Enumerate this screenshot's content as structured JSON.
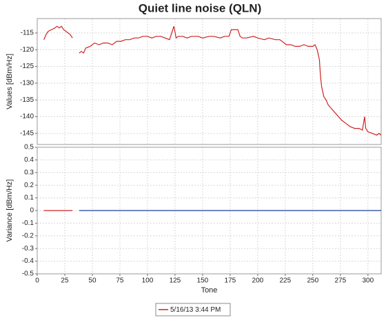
{
  "chart_data": [
    {
      "type": "line",
      "title": "Quiet line noise (QLN)",
      "ylabel": "Values [dBm/Hz]",
      "xlim": [
        0,
        312
      ],
      "xticks": [
        0,
        25,
        50,
        75,
        100,
        125,
        150,
        175,
        200,
        225,
        250,
        275,
        300
      ],
      "ylim": [
        -148.3,
        -110.7
      ],
      "yticks": [
        -115,
        -120,
        -125,
        -130,
        -135,
        -140,
        -145
      ],
      "grid": true,
      "series": [
        {
          "name": "5/16/13 3:44 PM",
          "color": "#d02020",
          "x": [
            6,
            8,
            10,
            13,
            16,
            18,
            20,
            22,
            24,
            26,
            28,
            30,
            32,
            35,
            38,
            40,
            42,
            44,
            48,
            52,
            56,
            60,
            64,
            68,
            72,
            76,
            80,
            84,
            88,
            92,
            96,
            100,
            104,
            108,
            112,
            116,
            120,
            124,
            126,
            128,
            132,
            136,
            140,
            146,
            150,
            156,
            160,
            166,
            170,
            174,
            176,
            178,
            182,
            184,
            186,
            190,
            196,
            200,
            206,
            210,
            216,
            220,
            224,
            226,
            230,
            234,
            238,
            242,
            246,
            250,
            252,
            254,
            256,
            257,
            258,
            260,
            262,
            264,
            268,
            272,
            276,
            280,
            284,
            288,
            292,
            295,
            297,
            298,
            300,
            304,
            308,
            310,
            312
          ],
          "values": [
            -117,
            -115.5,
            -114.5,
            -114,
            -113.5,
            -113,
            -113.5,
            -113,
            -114,
            -114.5,
            -115,
            -115.5,
            -116.5,
            null,
            -121,
            -120.5,
            -121,
            -119.5,
            -119,
            -118,
            -118.5,
            -118,
            -118,
            -118.5,
            -117.5,
            -117.5,
            -117,
            -117,
            -116.5,
            -116.5,
            -116,
            -116,
            -116.5,
            -116,
            -116,
            -116.5,
            -117,
            -113,
            -116.5,
            -116,
            -116,
            -116.5,
            -116,
            -116,
            -116.5,
            -116,
            -116,
            -116.5,
            -116,
            -116,
            -114,
            -114,
            -114,
            -116,
            -116.5,
            -116.5,
            -116,
            -116.5,
            -117,
            -116.5,
            -117,
            -117,
            -118,
            -118.5,
            -118.5,
            -119,
            -119,
            -118.5,
            -119,
            -119,
            -118.5,
            -120,
            -123,
            -128,
            -131,
            -134,
            -135,
            -136.5,
            -138,
            -139.5,
            -141,
            -142,
            -143,
            -143.5,
            -143.5,
            -144,
            -140,
            -143.5,
            -144.5,
            -145,
            -145.5,
            -145,
            -145.5
          ]
        }
      ]
    },
    {
      "type": "line",
      "xlabel": "Tone",
      "ylabel": "Variance [dBm/Hz]",
      "xlim": [
        0,
        312
      ],
      "xticks": [
        0,
        25,
        50,
        75,
        100,
        125,
        150,
        175,
        200,
        225,
        250,
        275,
        300
      ],
      "ylim": [
        -0.5,
        0.5
      ],
      "yticks": [
        0.5,
        0.4,
        0.3,
        0.2,
        0.1,
        0,
        -0.1,
        -0.2,
        -0.3,
        -0.4,
        -0.5
      ],
      "grid": true,
      "series": [
        {
          "color": "#d02020",
          "x": [
            6,
            32
          ],
          "values": [
            0,
            0
          ]
        },
        {
          "color": "#1a3d9c",
          "x": [
            38,
            312
          ],
          "values": [
            0,
            0
          ]
        }
      ]
    }
  ]
}
